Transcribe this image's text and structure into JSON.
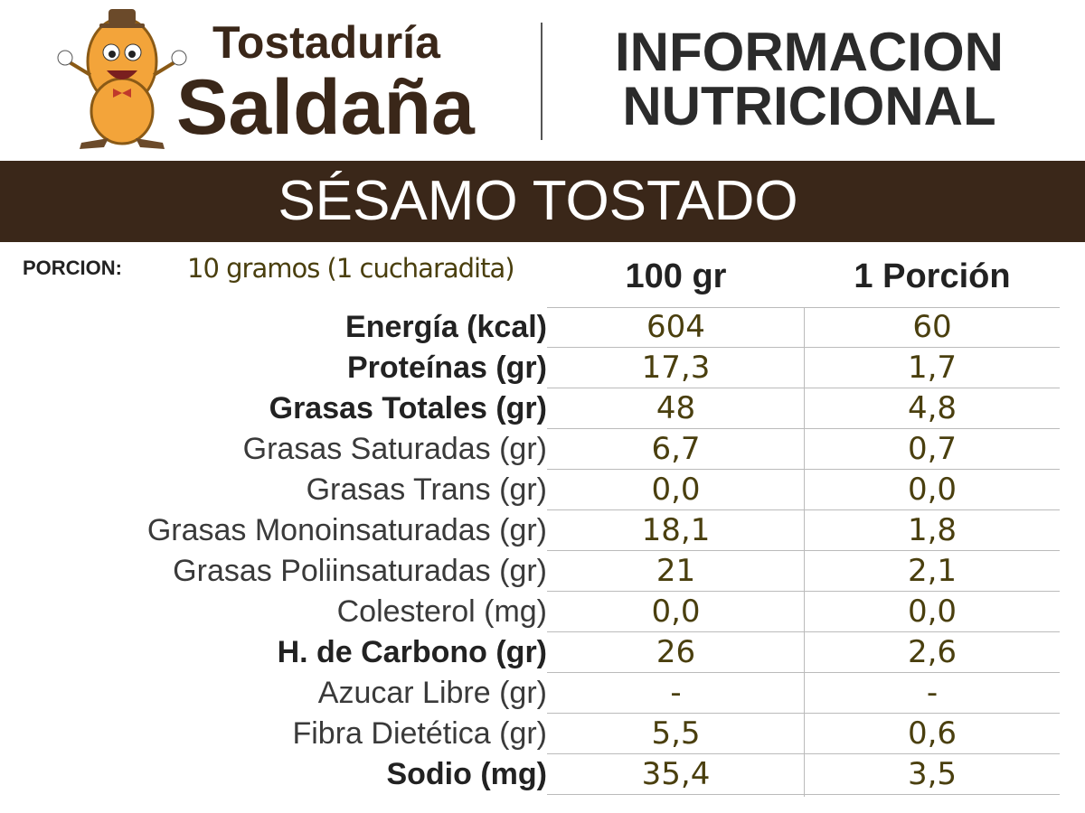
{
  "brand": {
    "line1": "Tostaduría",
    "line2": "Saldaña"
  },
  "header": {
    "title_line1": "INFORMACION",
    "title_line2": "NUTRICIONAL"
  },
  "product": "SÉSAMO TOSTADO",
  "portion": {
    "label": "PORCION:",
    "value": "10 gramos (1 cucharadita)"
  },
  "table": {
    "columns": [
      "100 gr",
      "1 Porción"
    ],
    "rows": [
      [
        "Energía (kcal)",
        "604",
        "60"
      ],
      [
        "Proteínas (gr)",
        "17,3",
        "1,7"
      ],
      [
        "Grasas Totales (gr)",
        "48",
        "4,8"
      ],
      [
        "Grasas Saturadas (gr)",
        "6,7",
        "0,7"
      ],
      [
        "Grasas Trans (gr)",
        "0,0",
        "0,0"
      ],
      [
        "Grasas Monoinsaturadas (gr)",
        "18,1",
        "1,8"
      ],
      [
        "Grasas Poliinsaturadas (gr)",
        "21",
        "2,1"
      ],
      [
        "Colesterol (mg)",
        "0,0",
        "0,0"
      ],
      [
        "H. de Carbono (gr)",
        "26",
        "2,6"
      ],
      [
        "Azucar Libre (gr)",
        "-",
        "-"
      ],
      [
        "Fibra Dietética (gr)",
        "5,5",
        "0,6"
      ],
      [
        "Sodio (mg)",
        "35,4",
        "3,5"
      ]
    ]
  }
}
